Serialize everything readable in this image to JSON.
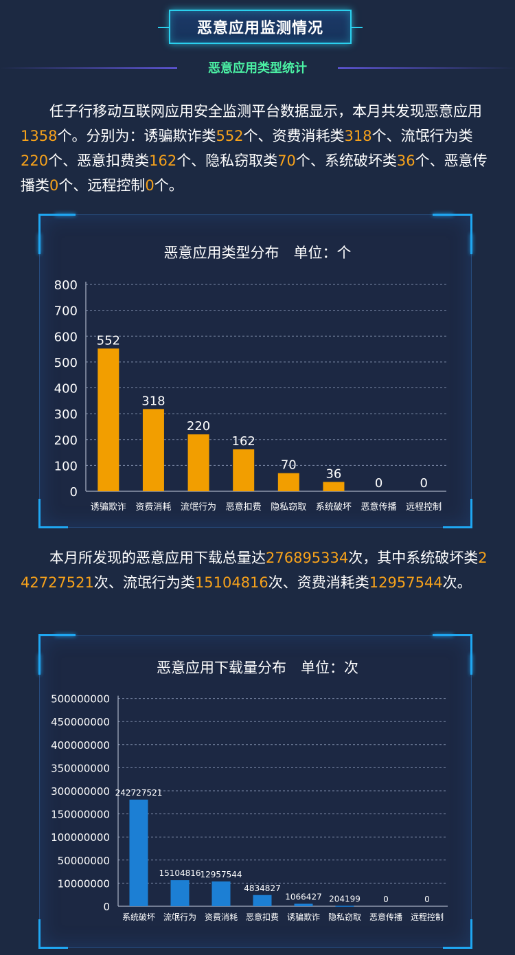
{
  "header": {
    "title": "恶意应用监测情况",
    "subtitle": "恶意应用类型统计"
  },
  "paragraph1": {
    "segments": [
      {
        "text": "任子行移动互联网应用安全监测平台数据显示，本月共发现恶意应用"
      },
      {
        "text": "1358",
        "hl": true
      },
      {
        "text": "个。分别为：诱骗欺诈类"
      },
      {
        "text": "552",
        "hl": true
      },
      {
        "text": "个、资费消耗类"
      },
      {
        "text": "318",
        "hl": true
      },
      {
        "text": "个、流氓行为类"
      },
      {
        "text": "220",
        "hl": true
      },
      {
        "text": "个、恶意扣费类"
      },
      {
        "text": "162",
        "hl": true
      },
      {
        "text": "个、隐私窃取类"
      },
      {
        "text": "70",
        "hl": true
      },
      {
        "text": "个、系统破坏类"
      },
      {
        "text": "36",
        "hl": true
      },
      {
        "text": "个、恶意传播类"
      },
      {
        "text": "0",
        "hl": true
      },
      {
        "text": "个、远程控制"
      },
      {
        "text": "0",
        "hl": true
      },
      {
        "text": "个。"
      }
    ]
  },
  "paragraph2": {
    "segments": [
      {
        "text": "本月所发现的恶意应用下载总量达"
      },
      {
        "text": "276895334",
        "hl": true
      },
      {
        "text": "次，其中系统破坏类"
      },
      {
        "text": "242727521",
        "hl": true
      },
      {
        "text": "次、流氓行为类"
      },
      {
        "text": "15104816",
        "hl": true
      },
      {
        "text": "次、资费消耗类"
      },
      {
        "text": "12957544",
        "hl": true
      },
      {
        "text": "次。"
      }
    ]
  },
  "colors": {
    "accent_orange": "#f7a21b",
    "bar_orange": "#f29e00",
    "bar_blue": "#1c7fd4",
    "subtitle_green": "#4bf1a4",
    "frame_blue": "#1fa7f2"
  },
  "chart_data": [
    {
      "type": "bar",
      "title": "恶意应用类型分布　单位：个",
      "categories": [
        "诱骗欺诈",
        "资费消耗",
        "流氓行为",
        "恶意扣费",
        "隐私窃取",
        "系统破坏",
        "恶意传播",
        "远程控制"
      ],
      "values": [
        552,
        318,
        220,
        162,
        70,
        36,
        0,
        0
      ],
      "ylim": [
        0,
        800
      ],
      "yticks": [
        0,
        100,
        200,
        300,
        400,
        500,
        600,
        700,
        800
      ],
      "grid": true,
      "data_labels": true
    },
    {
      "type": "bar",
      "title": "恶意应用下载量分布　单位：次",
      "categories": [
        "系统破坏",
        "流氓行为",
        "资费消耗",
        "恶意扣费",
        "诱骗欺诈",
        "隐私窃取",
        "恶意传播",
        "远程控制"
      ],
      "values": [
        242727521,
        15104816,
        12957544,
        4834827,
        1066427,
        204199,
        0,
        0
      ],
      "yticks": [
        0,
        10000000,
        50000000,
        100000000,
        150000000,
        300000000,
        350000000,
        400000000,
        450000000,
        500000000
      ],
      "axis_scale": "broken (uneven tick spacing)",
      "grid": true,
      "data_labels": true
    }
  ]
}
